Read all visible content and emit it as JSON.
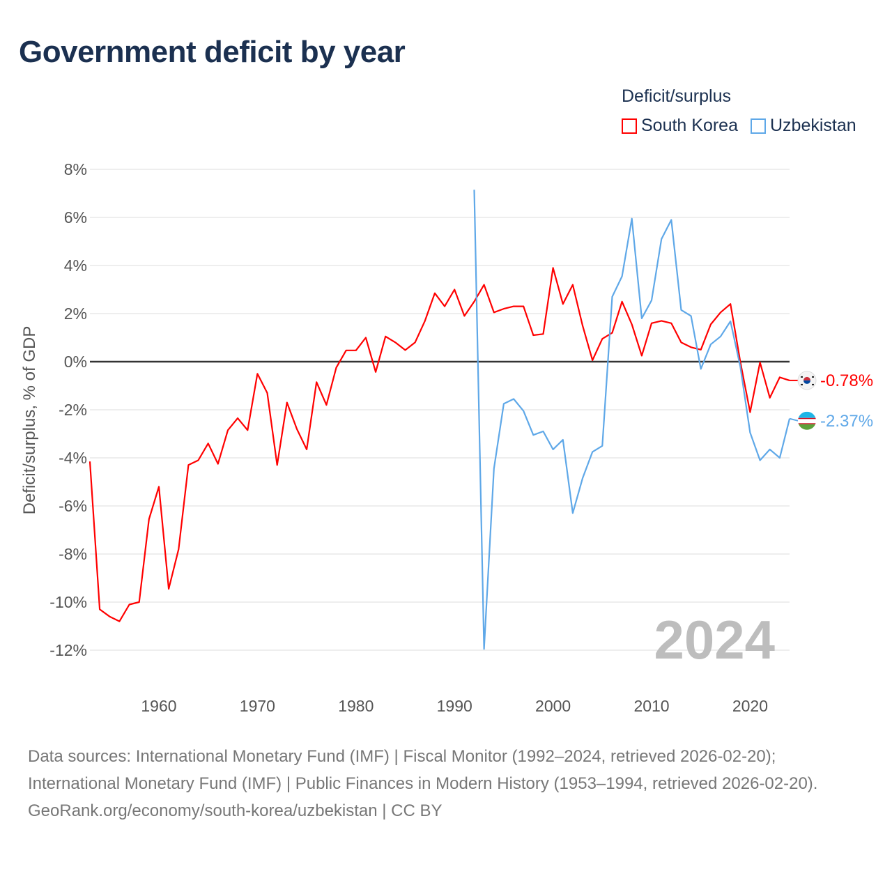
{
  "title": "Government deficit by year",
  "legend": {
    "title": "Deficit/surplus",
    "items": [
      "South Korea",
      "Uzbekistan"
    ]
  },
  "colors": {
    "south_korea": "#ff0000",
    "uzbekistan": "#5fa8e8"
  },
  "footer": {
    "sources": "Data sources: International Monetary Fund (IMF) | Fiscal Monitor (1992–2024, retrieved 2026-02-20); International Monetary Fund (IMF) | Public Finances in Modern History (1953–1994, retrieved 2026-02-20).",
    "credit": "GeoRank.org/economy/south-korea/uzbekistan | CC BY"
  },
  "chart_data": {
    "type": "line",
    "title": "Government deficit by year",
    "xlabel": "",
    "ylabel": "Deficit/surplus, % of GDP",
    "xlim": [
      1953,
      2024
    ],
    "ylim": [
      -12,
      8
    ],
    "xticks": [
      1960,
      1970,
      1980,
      1990,
      2000,
      2010,
      2020
    ],
    "yticks": [
      8,
      6,
      4,
      2,
      0,
      -2,
      -4,
      -6,
      -8,
      -10,
      -12
    ],
    "ytick_labels": [
      "8%",
      "6%",
      "4%",
      "2%",
      "0%",
      "-2%",
      "-4%",
      "-6%",
      "-8%",
      "-10%",
      "-12%"
    ],
    "watermark": "2024",
    "legend_placement": "top-right",
    "series": [
      {
        "name": "South Korea",
        "start_year": 1953,
        "end_label": "-0.78%",
        "values": [
          -4.15,
          -10.3,
          -10.6,
          -10.8,
          -10.1,
          -10.0,
          -6.55,
          -5.2,
          -9.45,
          -7.8,
          -4.3,
          -4.1,
          -3.4,
          -4.25,
          -2.85,
          -2.35,
          -2.85,
          -0.5,
          -1.3,
          -4.3,
          -1.7,
          -2.8,
          -3.65,
          -0.85,
          -1.8,
          -0.25,
          0.47,
          0.47,
          1.0,
          -0.43,
          1.05,
          0.8,
          0.48,
          0.8,
          1.7,
          2.85,
          2.3,
          3.0,
          1.9,
          2.5,
          3.2,
          2.05,
          2.2,
          2.3,
          2.3,
          1.1,
          1.15,
          3.9,
          2.4,
          3.2,
          1.5,
          0.06,
          0.95,
          1.2,
          2.5,
          1.55,
          0.25,
          1.6,
          1.7,
          1.6,
          0.8,
          0.6,
          0.5,
          1.55,
          2.05,
          2.4,
          0.0,
          -2.1,
          -0.03,
          -1.5,
          -0.65,
          -0.78
        ]
      },
      {
        "name": "Uzbekistan",
        "start_year": 1992,
        "end_label": "-2.37%",
        "values": [
          7.15,
          -11.95,
          -4.45,
          -1.75,
          -1.55,
          -2.05,
          -3.05,
          -2.9,
          -3.65,
          -3.25,
          -6.3,
          -4.85,
          -3.75,
          -3.5,
          2.7,
          3.55,
          5.95,
          1.8,
          2.55,
          5.1,
          5.9,
          2.15,
          1.9,
          -0.3,
          0.72,
          1.05,
          1.68,
          -0.2,
          -2.95,
          -4.1,
          -3.65,
          -4.0,
          -2.37
        ]
      }
    ]
  }
}
